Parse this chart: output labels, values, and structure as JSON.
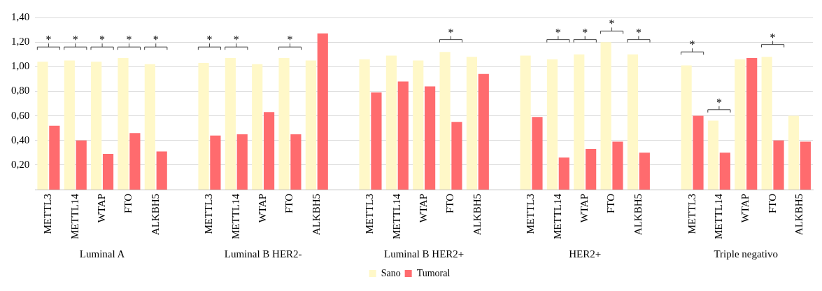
{
  "chart_data": {
    "type": "bar",
    "categories": [
      "METTL3",
      "METTL14",
      "WTAP",
      "FTO",
      "ALKBH5",
      null,
      "METTL3",
      "METTL14",
      "WTAP",
      "FTO",
      "ALKBH5",
      null,
      "METTL3",
      "METTL14",
      "WTAP",
      "FTO",
      "ALKBH5",
      null,
      "METTL3",
      "METTL14",
      "WTAP",
      "FTO",
      "ALKBH5",
      null,
      "METTL3",
      "METTL14",
      "WTAP",
      "FTO",
      "ALKBH5"
    ],
    "series": [
      {
        "name": "Sano",
        "color": "#fff8c8",
        "values": [
          1.04,
          1.05,
          1.04,
          1.07,
          1.02,
          null,
          1.03,
          1.07,
          1.02,
          1.07,
          1.05,
          null,
          1.06,
          1.09,
          1.05,
          1.12,
          1.08,
          null,
          1.09,
          1.06,
          1.1,
          1.2,
          1.1,
          null,
          1.01,
          0.56,
          1.06,
          1.08,
          0.6
        ]
      },
      {
        "name": "Tumoral",
        "color": "#ff6b6e",
        "values": [
          0.52,
          0.4,
          0.29,
          0.46,
          0.31,
          null,
          0.44,
          0.45,
          0.63,
          0.45,
          1.27,
          null,
          0.79,
          0.88,
          0.84,
          0.55,
          0.94,
          null,
          0.59,
          0.26,
          0.33,
          0.39,
          0.3,
          null,
          0.6,
          0.3,
          1.07,
          0.4,
          0.39
        ]
      }
    ],
    "ylim": [
      0,
      1.4
    ],
    "yticks": [
      {
        "value": 0.2,
        "label": "0,20"
      },
      {
        "value": 0.4,
        "label": "0,40"
      },
      {
        "value": 0.6,
        "label": "0,60"
      },
      {
        "value": 0.8,
        "label": "0,80"
      },
      {
        "value": 1.0,
        "label": "1,00"
      },
      {
        "value": 1.2,
        "label": "1,20"
      },
      {
        "value": 1.4,
        "label": "1,40"
      }
    ],
    "grid": "y",
    "legend": "bottom",
    "annotations": [
      "Luminal A",
      "Luminal B HER2-",
      "Luminal B HER2+",
      "HER2+",
      "Triple negativo",
      "*",
      "*",
      "*",
      "*",
      "*",
      "*",
      "*",
      "*",
      "*",
      "*",
      "*",
      "*",
      "*",
      "*",
      "*",
      "*"
    ]
  }
}
